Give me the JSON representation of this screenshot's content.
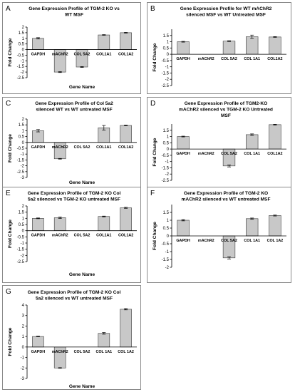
{
  "chart_data": [
    {
      "panel": "A",
      "type": "bar",
      "title": [
        "Gene Expression Profile of TGM-2 KO vs",
        "WT MSF"
      ],
      "xlabel": "Gene Name",
      "ylabel": "Fold Change",
      "categories": [
        "GAPDH",
        "mAChR2",
        "COL 5A2",
        "COL1A1",
        "COL1A2"
      ],
      "values": [
        1.0,
        -2.0,
        -1.55,
        1.3,
        1.5
      ],
      "errors": [
        0.06,
        0.04,
        0.04,
        0.03,
        0.03
      ],
      "ylim": [
        -2.5,
        2
      ],
      "yticks": [
        2,
        1.5,
        1,
        0.5,
        0,
        -0.5,
        -1,
        -1.5,
        -2,
        -2.5
      ],
      "ytick_labels": [
        "2",
        "1.5",
        "1",
        "0.5",
        "0",
        "-0.5",
        "-1",
        "-1.5",
        "-2",
        "-2.5"
      ]
    },
    {
      "panel": "B",
      "type": "bar",
      "title": [
        "Gene Expression Profile for WT mAChR2",
        "silenced MSF vs WT Untreated MSF"
      ],
      "xlabel": "",
      "ylabel": "Fold Change",
      "categories": [
        "GAPDH",
        "mAChR2",
        "COL 5A2",
        "COL 1A1",
        "COL1A2"
      ],
      "values": [
        1.0,
        0.0,
        1.05,
        1.4,
        1.38
      ],
      "errors": [
        0.03,
        0,
        0.03,
        0.13,
        0.03
      ],
      "ylim": [
        -2.5,
        2
      ],
      "yticks": [
        1.5,
        1,
        0.5,
        0,
        -0.5,
        -1,
        -1.5,
        -2,
        -2.5
      ],
      "ytick_labels": [
        "1.5",
        "1",
        "0.5",
        "0",
        "-0.5",
        "-1",
        "-1.5",
        "-2",
        "-2.5"
      ]
    },
    {
      "panel": "C",
      "type": "bar",
      "title": [
        "Gene Expression Profile of Col 5a2",
        "silenced WT vs WT untreated MSF"
      ],
      "xlabel": "Gene Name",
      "ylabel": "Fold Change",
      "categories": [
        "GAPDH",
        "mAChR2",
        "COL 5A2",
        "COL1A1",
        "COL1A2"
      ],
      "values": [
        1.0,
        -1.4,
        0.0,
        1.25,
        1.45
      ],
      "errors": [
        0.1,
        0.03,
        0,
        0.2,
        0.03
      ],
      "ylim": [
        -3,
        2
      ],
      "yticks": [
        2,
        1.5,
        1,
        0.5,
        0,
        -0.5,
        -1,
        -1.5,
        -2,
        -2.5,
        -3
      ],
      "ytick_labels": [
        "2",
        "1.5",
        "1",
        "0.5",
        "0",
        "-0.5",
        "-1",
        "-1.5",
        "-2",
        "-2.5",
        "-3"
      ]
    },
    {
      "panel": "D",
      "type": "bar",
      "title": [
        "Gene Expression Profile of TGM2-KO",
        "mAChR2 silenced vs TGM-2 KO Untreated",
        "MSF"
      ],
      "xlabel": "",
      "ylabel": "Fold Change",
      "categories": [
        "GAPDH",
        "mAChR2",
        "COL 5A2",
        "COL 1A1",
        "COL1A2"
      ],
      "values": [
        1.0,
        0.0,
        -1.35,
        1.15,
        1.95
      ],
      "errors": [
        0.03,
        0,
        0.08,
        0.06,
        0.03
      ],
      "ylim": [
        -2.5,
        2
      ],
      "yticks": [
        1.5,
        1,
        0.5,
        0,
        -0.5,
        -1,
        -1.5,
        -2,
        -2.5
      ],
      "ytick_labels": [
        "1.5",
        "1",
        "0.5",
        "0",
        "-0.5",
        "-1",
        "-1.5",
        "-2",
        "-2.5"
      ]
    },
    {
      "panel": "E",
      "type": "bar",
      "title": [
        "Gene Expression Profile of TGM-2 KO Col",
        "5a2 silenced vs TGM-2 KO untreated MSF"
      ],
      "xlabel": "Gene Name",
      "ylabel": "Fold Change",
      "categories": [
        "GAPDH",
        "mAChR2",
        "COL 5A2",
        "COL1A1",
        "COL1A2"
      ],
      "values": [
        1.0,
        1.05,
        0.0,
        1.15,
        1.85
      ],
      "errors": [
        0.03,
        0.06,
        0,
        0.03,
        0.04
      ],
      "ylim": [
        -2.5,
        2
      ],
      "yticks": [
        2,
        1.5,
        1,
        0.5,
        0,
        -0.5,
        -1,
        -1.5,
        -2,
        -2.5
      ],
      "ytick_labels": [
        "2",
        "1.5",
        "1",
        "0.5",
        "0",
        "-0.5",
        "-1",
        "-1.5",
        "-2",
        "-2.5"
      ]
    },
    {
      "panel": "F",
      "type": "bar",
      "title": [
        "Gene Expression Profile of TGM-2 KO",
        "mAChR2 silenced vs WT untreated MSF"
      ],
      "xlabel": "",
      "ylabel": "Fold Change",
      "categories": [
        "GAPDH",
        "mAChR2",
        "COL 5A2",
        "COL 1A1",
        "COL 1A2"
      ],
      "values": [
        1.0,
        0.0,
        -1.4,
        1.1,
        1.3
      ],
      "errors": [
        0.04,
        0,
        0.07,
        0.04,
        0.03
      ],
      "ylim": [
        -2,
        2
      ],
      "yticks": [
        1.5,
        1,
        0.5,
        0,
        -0.5,
        -1,
        -1.5,
        -2
      ],
      "ytick_labels": [
        "1.5",
        "1",
        "0.5",
        "0",
        "-0.5",
        "-1",
        "-1.5",
        "-2"
      ]
    },
    {
      "panel": "G",
      "type": "bar",
      "title": [
        "Gene Expression Profile of TGM-2 KO Col",
        "5a2 silenced vs WT untreated MSF"
      ],
      "xlabel": "Gene Name",
      "ylabel": "Fold Change",
      "categories": [
        "GAPDH",
        "mAChR2",
        "COL 5A2",
        "COL 1A1",
        "COL 1A2"
      ],
      "values": [
        1.0,
        -2.0,
        0.0,
        1.3,
        3.6
      ],
      "errors": [
        0.03,
        0.03,
        0,
        0.08,
        0.06
      ],
      "ylim": [
        -3,
        4
      ],
      "yticks": [
        4,
        3,
        2,
        1,
        0,
        -1,
        -2,
        -3
      ],
      "ytick_labels": [
        "4",
        "3",
        "2",
        "1",
        "0",
        "-1",
        "-2",
        "-3"
      ]
    }
  ]
}
